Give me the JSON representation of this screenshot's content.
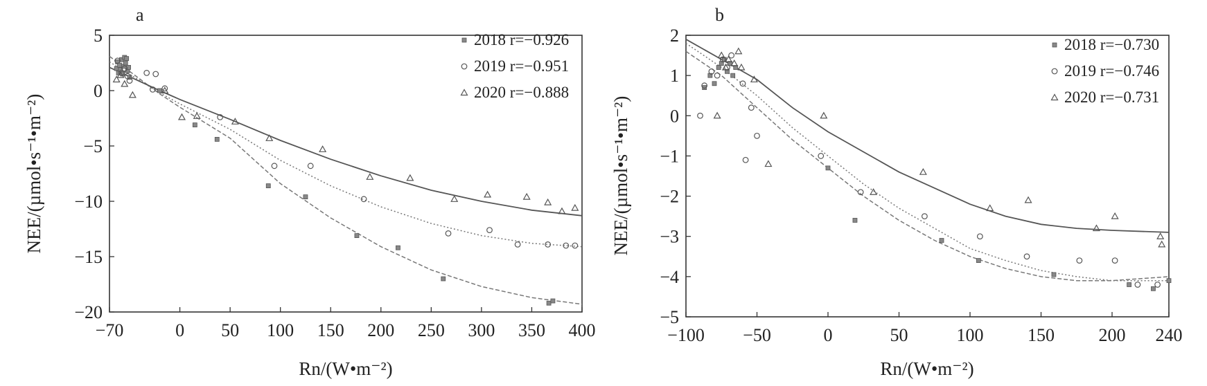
{
  "chart_data": [
    {
      "type": "scatter",
      "panel_label": "a",
      "xlabel": "Rn/(W•m⁻²)",
      "ylabel": "NEE/(µmol•s⁻¹•m⁻²)",
      "xlim": [
        -70,
        400
      ],
      "ylim": [
        -20,
        5
      ],
      "xticks": [
        -70,
        0,
        50,
        100,
        150,
        200,
        250,
        300,
        350,
        400
      ],
      "yticks": [
        5,
        0,
        -5,
        -10,
        -15,
        -20
      ],
      "legend_position": "top-right",
      "grid": false,
      "series": [
        {
          "name": "2018 r=−0.926",
          "marker": "square",
          "line_style": "dashed",
          "fit_points": [
            [
              -70,
              3.1
            ],
            [
              -20,
              -0.3
            ],
            [
              0,
              -1.5
            ],
            [
              50,
              -4.3
            ],
            [
              100,
              -8.4
            ],
            [
              150,
              -11.5
            ],
            [
              200,
              -14.1
            ],
            [
              250,
              -16.2
            ],
            [
              300,
              -17.7
            ],
            [
              350,
              -18.7
            ],
            [
              400,
              -19.3
            ]
          ],
          "points": [
            [
              -63,
              2.0
            ],
            [
              -62,
              2.6
            ],
            [
              -61,
              1.6
            ],
            [
              -60,
              2.3
            ],
            [
              -59,
              1.9
            ],
            [
              -58,
              2.8
            ],
            [
              -57,
              1.5
            ],
            [
              -56,
              2.2
            ],
            [
              -55,
              3.0
            ],
            [
              -54,
              2.5
            ],
            [
              -53,
              2.9
            ],
            [
              -52,
              1.8
            ],
            [
              -51,
              2.1
            ],
            [
              -50,
              1.2
            ],
            [
              -20,
              0.0
            ],
            [
              15,
              -3.1
            ],
            [
              37,
              -4.4
            ],
            [
              88,
              -8.6
            ],
            [
              125,
              -9.6
            ],
            [
              176,
              -13.1
            ],
            [
              217,
              -14.2
            ],
            [
              262,
              -17.0
            ],
            [
              367,
              -19.2
            ],
            [
              371,
              -19.0
            ]
          ]
        },
        {
          "name": "2019 r=−0.951",
          "marker": "circle",
          "line_style": "dotted",
          "fit_points": [
            [
              -70,
              2.6
            ],
            [
              -20,
              -0.2
            ],
            [
              0,
              -1.2
            ],
            [
              50,
              -3.5
            ],
            [
              100,
              -6.3
            ],
            [
              150,
              -8.6
            ],
            [
              200,
              -10.5
            ],
            [
              250,
              -12.0
            ],
            [
              300,
              -13.1
            ],
            [
              350,
              -13.8
            ],
            [
              400,
              -14.1
            ]
          ],
          "points": [
            [
              -62,
              2.7
            ],
            [
              -58,
              1.6
            ],
            [
              -55,
              2.0
            ],
            [
              -52,
              1.3
            ],
            [
              -50,
              0.9
            ],
            [
              -33,
              1.6
            ],
            [
              -27,
              0.1
            ],
            [
              -24,
              1.5
            ],
            [
              -15,
              0.2
            ],
            [
              40,
              -2.4
            ],
            [
              94,
              -6.8
            ],
            [
              130,
              -6.8
            ],
            [
              183,
              -9.8
            ],
            [
              267,
              -12.9
            ],
            [
              308,
              -12.6
            ],
            [
              336,
              -13.9
            ],
            [
              366,
              -13.9
            ],
            [
              384,
              -14.0
            ],
            [
              393,
              -14.0
            ]
          ]
        },
        {
          "name": "2020 r=−0.888",
          "marker": "triangle",
          "line_style": "solid",
          "fit_points": [
            [
              -70,
              2.1
            ],
            [
              -20,
              0.0
            ],
            [
              0,
              -0.8
            ],
            [
              50,
              -2.6
            ],
            [
              100,
              -4.5
            ],
            [
              150,
              -6.2
            ],
            [
              200,
              -7.7
            ],
            [
              250,
              -9.0
            ],
            [
              300,
              -10.0
            ],
            [
              350,
              -10.8
            ],
            [
              400,
              -11.3
            ]
          ],
          "points": [
            [
              -63,
              1.0
            ],
            [
              -59,
              1.4
            ],
            [
              -55,
              0.6
            ],
            [
              -47,
              -0.4
            ],
            [
              -15,
              0.0
            ],
            [
              2,
              -2.4
            ],
            [
              17,
              -2.3
            ],
            [
              55,
              -2.8
            ],
            [
              89,
              -4.3
            ],
            [
              142,
              -5.3
            ],
            [
              189,
              -7.8
            ],
            [
              229,
              -7.9
            ],
            [
              273,
              -9.8
            ],
            [
              306,
              -9.4
            ],
            [
              345,
              -9.6
            ],
            [
              366,
              -10.1
            ],
            [
              380,
              -10.9
            ],
            [
              393,
              -10.6
            ]
          ]
        }
      ]
    },
    {
      "type": "scatter",
      "panel_label": "b",
      "xlabel": "Rn/(W•m⁻²)",
      "ylabel": "NEE/(µmol•s⁻¹•m⁻²)",
      "xlim": [
        -100,
        240
      ],
      "ylim": [
        -5,
        2
      ],
      "xticks": [
        -100,
        -50,
        0,
        50,
        100,
        150,
        200,
        240
      ],
      "yticks": [
        2,
        1,
        0,
        -1,
        -2,
        -3,
        -4,
        -5
      ],
      "legend_position": "top-right",
      "grid": false,
      "series": [
        {
          "name": "2018 r=−0.730",
          "marker": "square",
          "line_style": "dashed",
          "fit_points": [
            [
              -100,
              1.6
            ],
            [
              -75,
              1.0
            ],
            [
              -50,
              0.2
            ],
            [
              -25,
              -0.6
            ],
            [
              0,
              -1.3
            ],
            [
              25,
              -2.0
            ],
            [
              50,
              -2.6
            ],
            [
              75,
              -3.1
            ],
            [
              100,
              -3.5
            ],
            [
              125,
              -3.8
            ],
            [
              150,
              -4.0
            ],
            [
              175,
              -4.1
            ],
            [
              200,
              -4.1
            ],
            [
              240,
              -4.0
            ]
          ],
          "points": [
            [
              -87,
              0.7
            ],
            [
              -83,
              1.0
            ],
            [
              -80,
              0.8
            ],
            [
              -77,
              1.2
            ],
            [
              -75,
              1.3
            ],
            [
              -73,
              1.4
            ],
            [
              -71,
              1.1
            ],
            [
              -69,
              1.3
            ],
            [
              -67,
              1.0
            ],
            [
              -65,
              1.2
            ],
            [
              0,
              -1.3
            ],
            [
              19,
              -2.6
            ],
            [
              80,
              -3.1
            ],
            [
              106,
              -3.6
            ],
            [
              159,
              -3.95
            ],
            [
              212,
              -4.2
            ],
            [
              229,
              -4.3
            ],
            [
              240,
              -4.1
            ]
          ]
        },
        {
          "name": "2019 r=−0.746",
          "marker": "circle",
          "line_style": "dotted",
          "fit_points": [
            [
              -100,
              1.8
            ],
            [
              -75,
              1.2
            ],
            [
              -50,
              0.5
            ],
            [
              -25,
              -0.3
            ],
            [
              0,
              -1.0
            ],
            [
              25,
              -1.7
            ],
            [
              50,
              -2.3
            ],
            [
              75,
              -2.8
            ],
            [
              100,
              -3.3
            ],
            [
              125,
              -3.6
            ],
            [
              150,
              -3.85
            ],
            [
              175,
              -4.0
            ],
            [
              200,
              -4.1
            ],
            [
              240,
              -4.1
            ]
          ],
          "points": [
            [
              -90,
              0.0
            ],
            [
              -87,
              0.75
            ],
            [
              -82,
              1.1
            ],
            [
              -78,
              1.0
            ],
            [
              -74,
              1.4
            ],
            [
              -71,
              1.2
            ],
            [
              -68,
              1.5
            ],
            [
              -60,
              0.8
            ],
            [
              -58,
              -1.1
            ],
            [
              -54,
              0.2
            ],
            [
              -50,
              -0.5
            ],
            [
              -5,
              -1.0
            ],
            [
              23,
              -1.9
            ],
            [
              68,
              -2.5
            ],
            [
              107,
              -3.0
            ],
            [
              140,
              -3.5
            ],
            [
              177,
              -3.6
            ],
            [
              202,
              -3.6
            ],
            [
              218,
              -4.2
            ],
            [
              232,
              -4.2
            ]
          ]
        },
        {
          "name": "2020 r=−0.731",
          "marker": "triangle",
          "line_style": "solid",
          "fit_points": [
            [
              -100,
              1.9
            ],
            [
              -75,
              1.4
            ],
            [
              -50,
              0.9
            ],
            [
              -25,
              0.2
            ],
            [
              0,
              -0.4
            ],
            [
              25,
              -0.9
            ],
            [
              50,
              -1.4
            ],
            [
              75,
              -1.8
            ],
            [
              100,
              -2.2
            ],
            [
              125,
              -2.5
            ],
            [
              150,
              -2.7
            ],
            [
              175,
              -2.8
            ],
            [
              200,
              -2.85
            ],
            [
              240,
              -2.9
            ]
          ],
          "points": [
            [
              -78,
              0.0
            ],
            [
              -75,
              1.5
            ],
            [
              -72,
              1.2
            ],
            [
              -70,
              1.4
            ],
            [
              -66,
              1.3
            ],
            [
              -63,
              1.6
            ],
            [
              -61,
              1.2
            ],
            [
              -52,
              0.9
            ],
            [
              -42,
              -1.2
            ],
            [
              -3,
              0.0
            ],
            [
              32,
              -1.9
            ],
            [
              67,
              -1.4
            ],
            [
              114,
              -2.3
            ],
            [
              141,
              -2.1
            ],
            [
              189,
              -2.8
            ],
            [
              202,
              -2.5
            ],
            [
              234,
              -3.0
            ],
            [
              235,
              -3.2
            ]
          ]
        }
      ]
    }
  ]
}
